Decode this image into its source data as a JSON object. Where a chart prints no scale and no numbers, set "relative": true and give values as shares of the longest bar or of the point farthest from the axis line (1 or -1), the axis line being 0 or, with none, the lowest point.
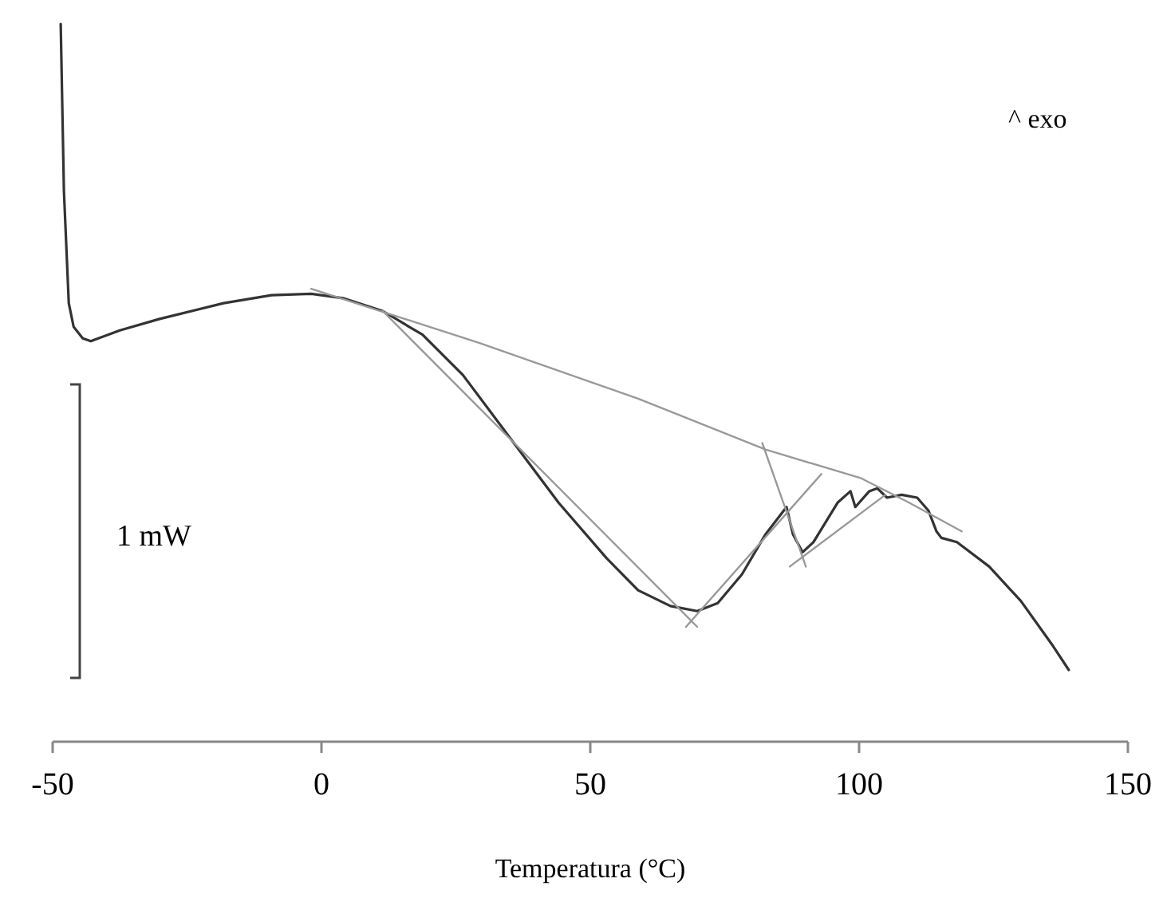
{
  "chart_data": {
    "type": "line",
    "relative": true,
    "xlabel": "Temperatura (°C)",
    "xlim": [
      -50,
      150
    ],
    "xticks": [
      -50,
      0,
      50,
      100,
      150
    ],
    "marker": "none",
    "line_style": "solid",
    "grid": false,
    "tick_labels": "x",
    "annotations": [
      "^ exo",
      "1 mW"
    ],
    "series": [
      {
        "color": "#333333",
        "x": [
          -48.5,
          -47.9,
          -47,
          -46.1,
          -44.4,
          -42.9,
          -37.5,
          -30.1,
          -18.2,
          -9.3,
          -1.9,
          4.0,
          11.4,
          18.8,
          26.3,
          35.2,
          44.1,
          53.0,
          58.9,
          64.9,
          69.9,
          73.7,
          78.2,
          82.6,
          86.5,
          87.7,
          89.5,
          91.5,
          96.0,
          98.4,
          99.3,
          101.9,
          103.4,
          105.2,
          107.9,
          110.8,
          112.9,
          114.4,
          115.3,
          118.2,
          124.2,
          130.1,
          136.1,
          139.0
        ],
        "values": [
          1.0,
          0.767,
          0.611,
          0.578,
          0.562,
          0.558,
          0.573,
          0.589,
          0.611,
          0.622,
          0.624,
          0.618,
          0.6,
          0.567,
          0.511,
          0.422,
          0.333,
          0.256,
          0.211,
          0.189,
          0.182,
          0.193,
          0.233,
          0.289,
          0.327,
          0.289,
          0.264,
          0.278,
          0.333,
          0.349,
          0.327,
          0.349,
          0.353,
          0.34,
          0.344,
          0.34,
          0.322,
          0.293,
          0.284,
          0.278,
          0.244,
          0.196,
          0.133,
          0.1
        ]
      },
      {
        "color": "#999999",
        "x": [
          -1.9,
          29.2,
          58.9,
          82.6,
          100.4,
          109.3,
          119.1
        ],
        "values": [
          0.631,
          0.556,
          0.478,
          0.407,
          0.367,
          0.333,
          0.293
        ]
      },
      {
        "color": "#999999",
        "x": [
          11.4,
          69.9
        ],
        "values": [
          0.6,
          0.16
        ]
      },
      {
        "color": "#999999",
        "x": [
          67.8,
          93.0
        ],
        "values": [
          0.16,
          0.373
        ]
      },
      {
        "color": "#999999",
        "x": [
          82.0,
          90.1
        ],
        "values": [
          0.416,
          0.244
        ]
      },
      {
        "color": "#999999",
        "x": [
          87.1,
          104.9
        ],
        "values": [
          0.244,
          0.344
        ]
      }
    ]
  }
}
